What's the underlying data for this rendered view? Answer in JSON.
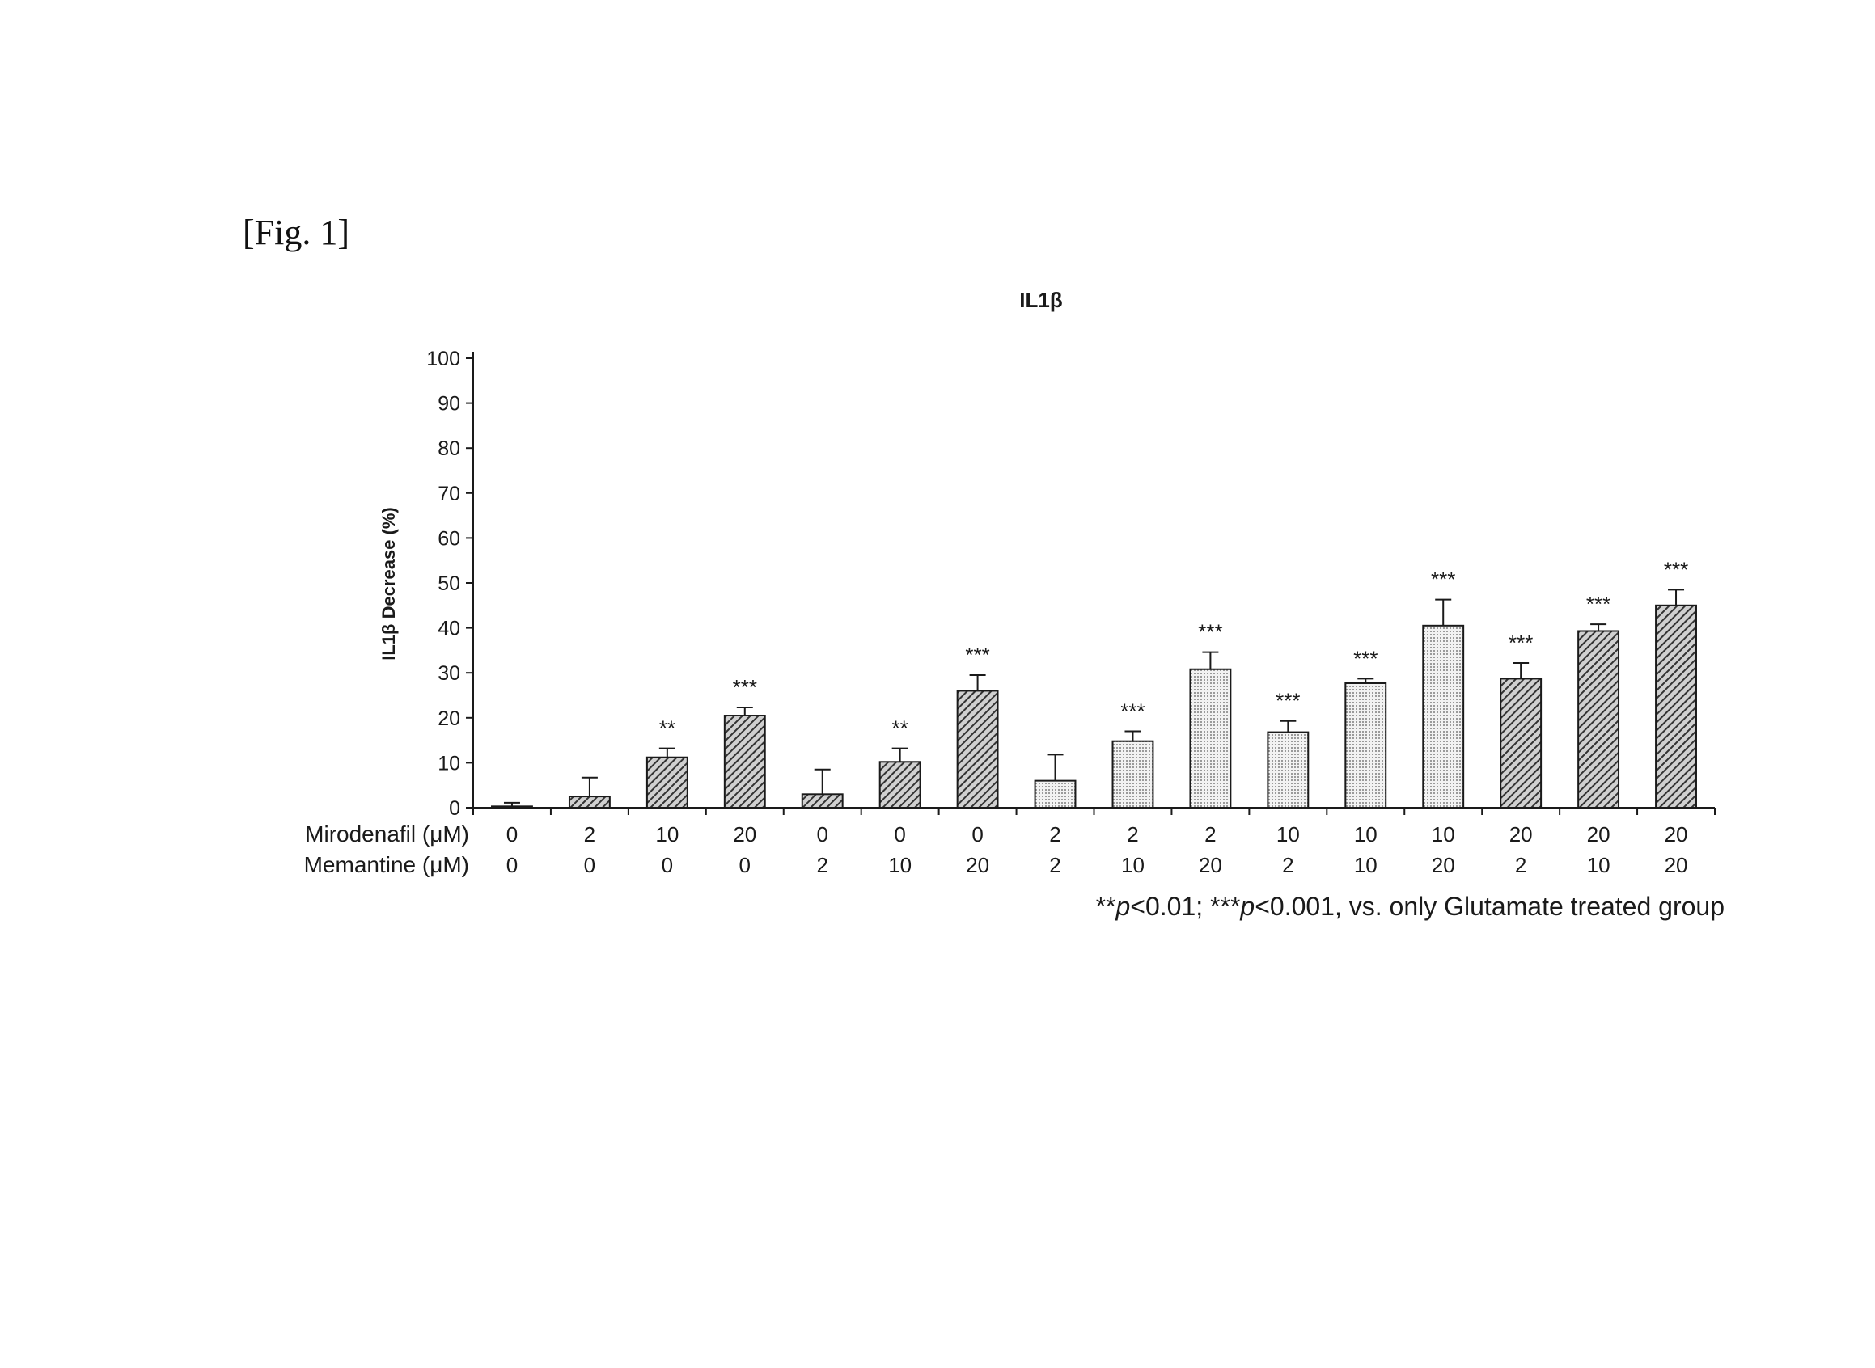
{
  "figure_label": "[Fig. 1]",
  "chart_data": {
    "type": "bar",
    "title": "IL1β",
    "ylabel": "IL1β Decrease (%)",
    "xlabel": "",
    "ylim": [
      0,
      100
    ],
    "yticks": [
      0,
      10,
      20,
      30,
      40,
      50,
      60,
      70,
      80,
      90,
      100
    ],
    "grid": false,
    "row_labels": [
      "Mirodenafil (μM)",
      "Memantine (μM)"
    ],
    "mirodenafil": [
      "0",
      "2",
      "10",
      "20",
      "0",
      "0",
      "0",
      "2",
      "2",
      "2",
      "10",
      "10",
      "10",
      "20",
      "20",
      "20"
    ],
    "memantine": [
      "0",
      "0",
      "0",
      "0",
      "2",
      "10",
      "20",
      "2",
      "10",
      "20",
      "2",
      "10",
      "20",
      "2",
      "10",
      "20"
    ],
    "values": [
      0.3,
      2.5,
      11.2,
      20.5,
      3.0,
      10.2,
      26.0,
      6.0,
      14.8,
      30.8,
      16.8,
      27.7,
      40.5,
      28.7,
      39.3,
      45.0
    ],
    "errors": [
      0.8,
      4.2,
      2.0,
      1.8,
      5.5,
      3.0,
      3.5,
      5.8,
      2.2,
      3.8,
      2.5,
      1.0,
      5.8,
      3.5,
      1.5,
      3.5
    ],
    "significance": [
      "",
      "",
      "**",
      "***",
      "",
      "**",
      "***",
      "",
      "***",
      "***",
      "***",
      "***",
      "***",
      "***",
      "***",
      "***"
    ],
    "patterns": [
      "dense",
      "dense",
      "dense",
      "dense",
      "dense",
      "dense",
      "dense",
      "light",
      "light",
      "light",
      "light",
      "light",
      "light",
      "dense",
      "dense",
      "dense"
    ],
    "footnote_parts": [
      "**",
      "p",
      "<0.01; ***",
      "p",
      "<0.001, vs. only Glutamate treated group"
    ],
    "colors": {
      "bar_stroke": "#1a1a1a",
      "dense_fill": "#555555",
      "light_fill": "#b5b5b5",
      "background": "#ffffff"
    }
  }
}
